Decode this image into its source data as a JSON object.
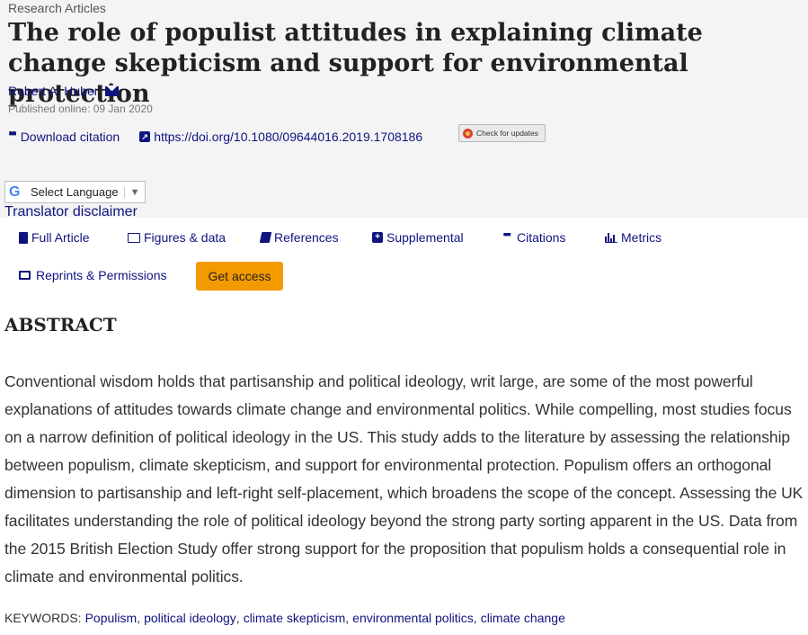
{
  "article": {
    "section": "Research Articles",
    "title": "The role of populist attitudes in explaining climate change skepticism and support for environmental protection",
    "author": "Robert A. Huber",
    "published": "Published online: 09 Jan 2020"
  },
  "tools": {
    "download_citation": "Download citation",
    "doi": "https://doi.org/10.1080/09644016.2019.1708186",
    "check_updates": "Check for updates"
  },
  "translate": {
    "select_language": "Select Language",
    "caret": "▼",
    "disclaimer": "Translator disclaimer"
  },
  "tabs": [
    {
      "label": "Full Article",
      "icon": "document-icon"
    },
    {
      "label": "Figures & data",
      "icon": "image-icon"
    },
    {
      "label": "References",
      "icon": "book-icon"
    },
    {
      "label": "Supplemental",
      "icon": "plus-icon"
    },
    {
      "label": "Citations",
      "icon": "quote-icon"
    },
    {
      "label": "Metrics",
      "icon": "bar-chart-icon"
    }
  ],
  "actions": {
    "reprints": "Reprints & Permissions",
    "get_access": "Get access"
  },
  "abstract": {
    "heading": "ABSTRACT",
    "body": "Conventional wisdom holds that partisanship and political ideology, writ large, are some of the most powerful explanations of attitudes towards climate change and environmental politics. While compelling, most studies focus on a narrow definition of political ideology in the US. This study adds to the literature by assessing the relationship between populism, climate skepticism, and support for environmental protection. Populism offers an orthogonal dimension to partisanship and left-right self-placement, which broadens the scope of the concept. Assessing the UK facilitates understanding the role of political ideology beyond the strong party sorting apparent in the US. Data from the 2015 British Election Study offer strong support for the proposition that populism holds a consequential role in climate and environmental politics."
  },
  "keywords": {
    "label": "KEYWORDS:",
    "items": [
      "Populism",
      "political ideology",
      "climate skepticism",
      "environmental politics",
      "climate change"
    ],
    "separator": ","
  },
  "colors": {
    "link": "#10147e",
    "header_band": "#f4f4f4",
    "access_button": "#f39a00"
  }
}
